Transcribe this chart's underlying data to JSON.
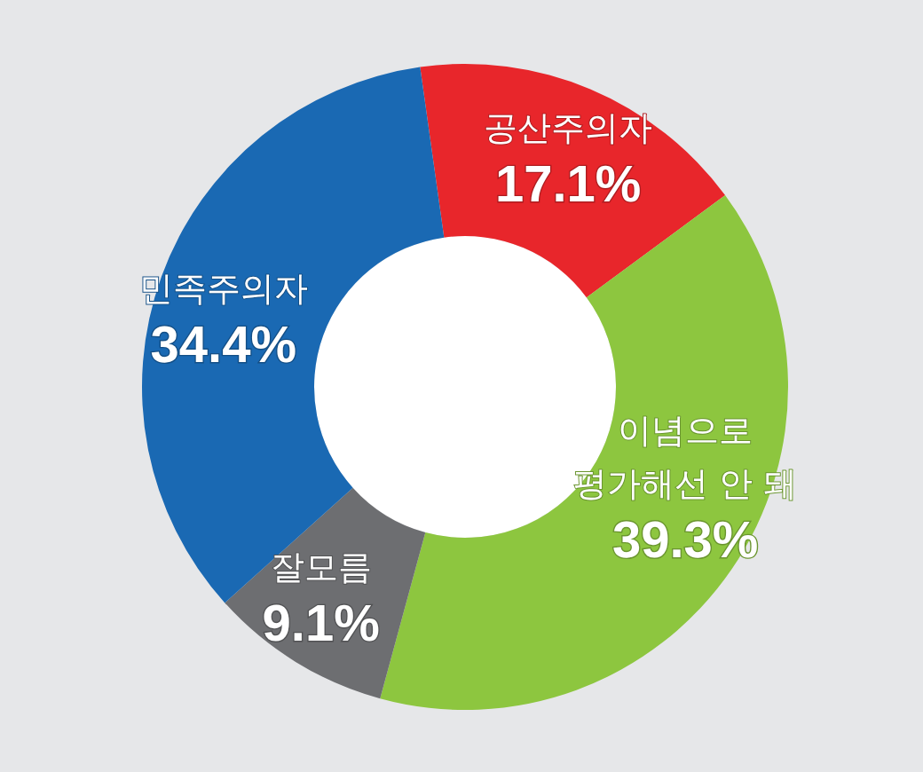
{
  "chart_data": {
    "type": "donut",
    "categories": [
      "공산주의자",
      "이념으로\n평가해선 안 돼",
      "잘모름",
      "민족주의자"
    ],
    "values": [
      17.1,
      39.3,
      9.1,
      34.4
    ],
    "colors": [
      "#e8262b",
      "#8dc63f",
      "#6d6e71",
      "#1a69b3"
    ],
    "value_labels": [
      "17.1%",
      "39.3%",
      "9.1%",
      "34.4%"
    ]
  }
}
